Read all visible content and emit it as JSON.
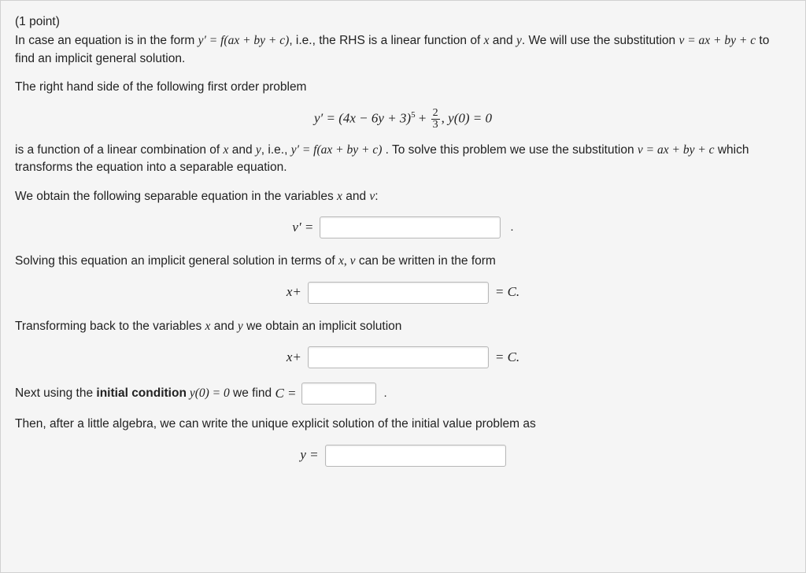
{
  "points_label": "(1 point)",
  "intro_p1a": "In case an equation is in the form ",
  "intro_math1": "y′ = f(ax + by + c)",
  "intro_p1b": ", i.e., the RHS is a linear function of ",
  "intro_x": "x",
  "intro_and": " and ",
  "intro_y": "y",
  "intro_p1c": ". We will use the substitution ",
  "intro_math2": "v = ax + by + c",
  "intro_p1d": " to find an implicit general solution.",
  "rhs_line": "The right hand side of the following first order problem",
  "ode_lhs": "y′ = (4x − 6y + 3)",
  "ode_exp": "5",
  "ode_plus": " + ",
  "frac_num": "2",
  "frac_den": "3",
  "ode_comma": ",   ",
  "ode_ic": "y(0) = 0",
  "sub_p1a": "is a function of a linear combination of ",
  "sub_p1b": ", i.e., ",
  "sub_math1": "y′ = f(ax + by + c)",
  "sub_p1c": " . To solve this problem we use the substitution ",
  "sub_math2": "v = ax + by + c",
  "sub_p1d": " which transforms the equation into a separable equation.",
  "weobtain_a": "We obtain the following separable equation in the variables ",
  "weobtain_b": ":",
  "vprime_label": "v′ =",
  "dot": ".",
  "solving_a": "Solving this equation an implicit general solution in terms of ",
  "solving_b": " can be written in the form",
  "xplus": "x+",
  "eqC": "= C.",
  "transform_line": "Transforming back to the variables ",
  "transform_line_b": " we obtain an implicit solution",
  "next_a": "Next using the ",
  "next_bold": "initial condition",
  "next_b": " y(0) = 0",
  "next_c": " we find ",
  "next_Ceq": "C =",
  "then_line": "Then, after a little algebra, we can write the unique explicit solution of the initial value problem as",
  "yeq": "y ="
}
